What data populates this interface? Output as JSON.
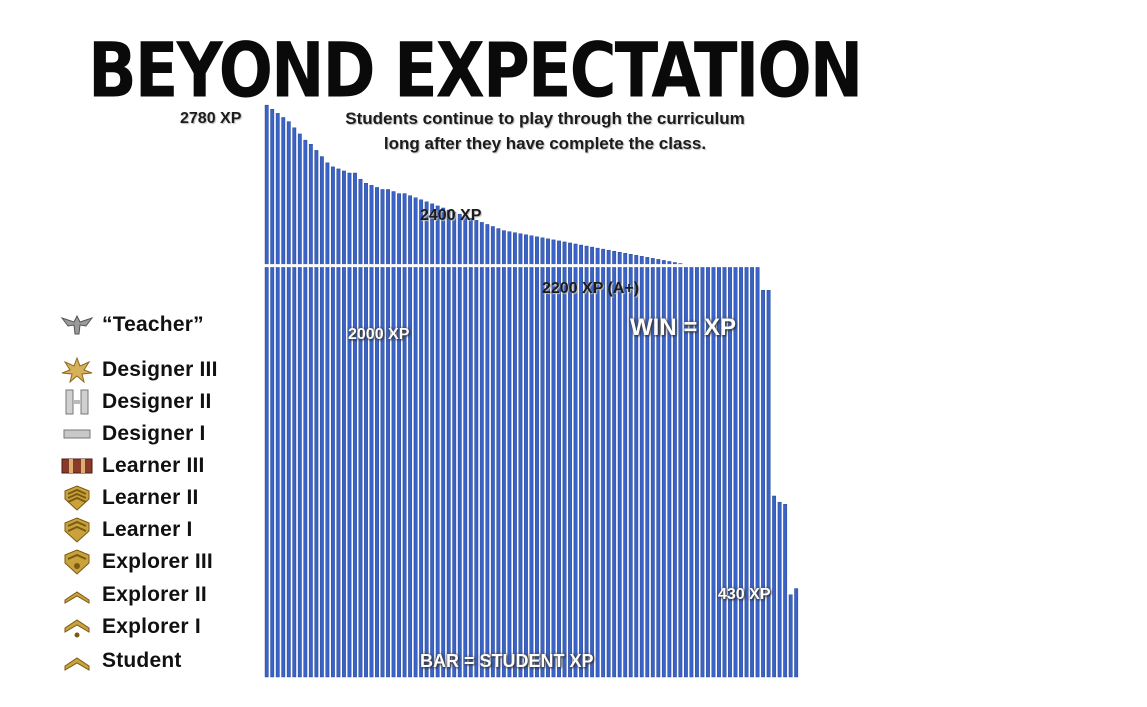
{
  "title": "BEYOND EXPECTATION",
  "subtitle_lines": [
    "Students continue to play through the curriculum",
    "long after they have complete the class."
  ],
  "annotations": {
    "top": "2780 XP",
    "a2400": "2400 XP",
    "a2200": "2200 XP (A+)",
    "a2000": "2000 XP",
    "win": "WIN = XP",
    "low": "430 XP",
    "bar_caption": "BAR = STUDENT XP"
  },
  "legend": [
    {
      "label": "“Teacher”",
      "icon": "eagle-icon"
    },
    {
      "label": "Designer III",
      "icon": "oak-leaf-icon"
    },
    {
      "label": "Designer II",
      "icon": "double-bar-icon"
    },
    {
      "label": "Designer I",
      "icon": "single-bar-icon"
    },
    {
      "label": "Learner III",
      "icon": "ribbon-bar-icon"
    },
    {
      "label": "Learner II",
      "icon": "chevron-shield-icon"
    },
    {
      "label": "Learner I",
      "icon": "chevron-shield-icon"
    },
    {
      "label": "Explorer III",
      "icon": "chevron-shield-icon"
    },
    {
      "label": "Explorer II",
      "icon": "single-chevron-icon"
    },
    {
      "label": "Explorer I",
      "icon": "chevron-dot-icon"
    },
    {
      "label": "Student",
      "icon": "single-chevron-icon"
    }
  ],
  "colors": {
    "bar": "#3a63c8",
    "bar_edge": "#1f3a86",
    "divider": "#ffffff",
    "gold": "#c9a23c",
    "gold_dark": "#7a5a14"
  },
  "chart_data": {
    "type": "bar",
    "title": "BEYOND EXPECTATION",
    "xlabel": "",
    "ylabel": "",
    "ylim": [
      0,
      2800
    ],
    "grid": false,
    "legend_placement": "left",
    "values": [
      2780,
      2760,
      2740,
      2720,
      2700,
      2670,
      2640,
      2610,
      2590,
      2560,
      2530,
      2500,
      2480,
      2470,
      2460,
      2450,
      2450,
      2420,
      2400,
      2390,
      2380,
      2370,
      2370,
      2360,
      2350,
      2350,
      2340,
      2330,
      2320,
      2310,
      2300,
      2290,
      2280,
      2270,
      2260,
      2250,
      2240,
      2230,
      2220,
      2210,
      2200,
      2190,
      2180,
      2170,
      2165,
      2160,
      2155,
      2150,
      2145,
      2140,
      2135,
      2130,
      2125,
      2120,
      2115,
      2110,
      2105,
      2100,
      2095,
      2090,
      2085,
      2080,
      2075,
      2070,
      2065,
      2060,
      2055,
      2050,
      2045,
      2040,
      2035,
      2030,
      2025,
      2020,
      2015,
      2010,
      2005,
      2000,
      2000,
      2000,
      2000,
      2000,
      2000,
      2000,
      2000,
      2000,
      2000,
      2000,
      2000,
      2000,
      1880,
      1880,
      880,
      850,
      840,
      400,
      430
    ]
  }
}
